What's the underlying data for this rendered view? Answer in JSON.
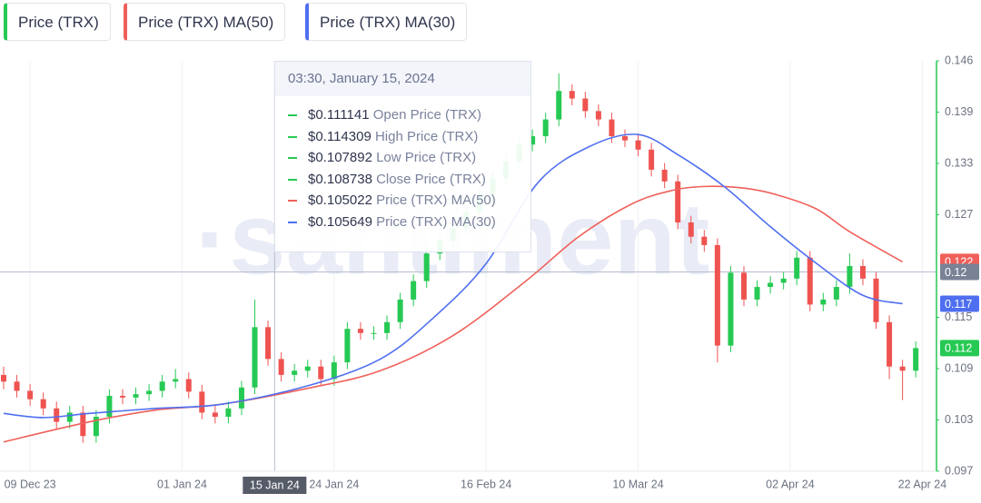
{
  "chart_data": {
    "type": "candlestick",
    "watermark": "·santiment",
    "xlim": [
      "2023-12-05",
      "2024-04-24"
    ],
    "xticks": [
      {
        "value": "2023-12-09",
        "label": "09 Dec 23"
      },
      {
        "value": "2024-01-01",
        "label": "01 Jan 24"
      },
      {
        "value": "2024-01-24",
        "label": "24 Jan 24"
      },
      {
        "value": "2024-02-16",
        "label": "16 Feb 24"
      },
      {
        "value": "2024-03-10",
        "label": "10 Mar 24"
      },
      {
        "value": "2024-04-02",
        "label": "02 Apr 24"
      },
      {
        "value": "2024-04-22",
        "label": "22 Apr 24"
      }
    ],
    "xgrid": true,
    "ylim": [
      0.097,
      0.146
    ],
    "yticks": [
      {
        "value": 0.097,
        "label": "0.097"
      },
      {
        "value": 0.103125,
        "label": "0.103"
      },
      {
        "value": 0.10925,
        "label": "0.109"
      },
      {
        "value": 0.115375,
        "label": "0.115"
      },
      {
        "value": 0.127625,
        "label": "0.127"
      },
      {
        "value": 0.13375,
        "label": "0.133"
      },
      {
        "value": 0.139875,
        "label": "0.139"
      },
      {
        "value": 0.146,
        "label": "0.146"
      }
    ],
    "series": [
      {
        "name": "Price (TRX)",
        "color": "#26c953",
        "down_color": "#ef5350",
        "x": [
          "2023-12-05",
          "2023-12-07",
          "2023-12-09",
          "2023-12-11",
          "2023-12-13",
          "2023-12-15",
          "2023-12-17",
          "2023-12-19",
          "2023-12-21",
          "2023-12-23",
          "2023-12-25",
          "2023-12-27",
          "2023-12-29",
          "2023-12-31",
          "2024-01-02",
          "2024-01-04",
          "2024-01-06",
          "2024-01-08",
          "2024-01-10",
          "2024-01-12",
          "2024-01-14",
          "2024-01-16",
          "2024-01-18",
          "2024-01-20",
          "2024-01-22",
          "2024-01-24",
          "2024-01-26",
          "2024-01-28",
          "2024-01-30",
          "2024-02-01",
          "2024-02-03",
          "2024-02-05",
          "2024-02-07",
          "2024-02-09",
          "2024-02-11",
          "2024-02-13",
          "2024-02-15",
          "2024-02-17",
          "2024-02-19",
          "2024-02-21",
          "2024-02-23",
          "2024-02-25",
          "2024-02-27",
          "2024-02-29",
          "2024-03-02",
          "2024-03-04",
          "2024-03-06",
          "2024-03-08",
          "2024-03-10",
          "2024-03-12",
          "2024-03-14",
          "2024-03-16",
          "2024-03-18",
          "2024-03-20",
          "2024-03-22",
          "2024-03-24",
          "2024-03-26",
          "2024-03-28",
          "2024-03-30",
          "2024-04-01",
          "2024-04-03",
          "2024-04-05",
          "2024-04-07",
          "2024-04-09",
          "2024-04-11",
          "2024-04-13",
          "2024-04-15",
          "2024-04-17",
          "2024-04-19",
          "2024-04-21"
        ],
        "open": [
          0.1085,
          0.1077,
          0.1066,
          0.1056,
          0.1045,
          0.1029,
          0.104,
          0.1012,
          0.1035,
          0.106,
          0.1058,
          0.1062,
          0.1066,
          0.1077,
          0.108,
          0.1065,
          0.104,
          0.1035,
          0.1045,
          0.107,
          0.1142,
          0.1104,
          0.1085,
          0.109,
          0.1095,
          0.108,
          0.11,
          0.114,
          0.1135,
          0.1135,
          0.1148,
          0.1175,
          0.1197,
          0.123,
          0.1245,
          0.126,
          0.128,
          0.13,
          0.132,
          0.134,
          0.136,
          0.137,
          0.139,
          0.1424,
          0.1415,
          0.14,
          0.139,
          0.137,
          0.1365,
          0.1354,
          0.133,
          0.1316,
          0.1267,
          0.125,
          0.124,
          0.112,
          0.1207,
          0.1175,
          0.119,
          0.1195,
          0.12,
          0.1225,
          0.1169,
          0.1175,
          0.119,
          0.1215,
          0.12,
          0.1148,
          0.1095,
          0.109
        ],
        "high": [
          0.1095,
          0.1085,
          0.1074,
          0.1064,
          0.1053,
          0.1048,
          0.1048,
          0.1043,
          0.1068,
          0.1068,
          0.107,
          0.1074,
          0.1085,
          0.1092,
          0.1088,
          0.1073,
          0.1048,
          0.1053,
          0.1078,
          0.1175,
          0.115,
          0.1112,
          0.1098,
          0.1103,
          0.1103,
          0.1108,
          0.1148,
          0.1148,
          0.1143,
          0.1156,
          0.1183,
          0.1205,
          0.1238,
          0.1253,
          0.1268,
          0.1288,
          0.1308,
          0.1328,
          0.1348,
          0.1368,
          0.1378,
          0.1398,
          0.1445,
          0.1432,
          0.1423,
          0.1408,
          0.1398,
          0.1378,
          0.1373,
          0.1362,
          0.1338,
          0.1324,
          0.1275,
          0.1258,
          0.1248,
          0.1215,
          0.1215,
          0.1198,
          0.1203,
          0.1208,
          0.1233,
          0.1233,
          0.1183,
          0.1198,
          0.123,
          0.1223,
          0.1208,
          0.1156,
          0.1103,
          0.1125
        ],
        "low": [
          0.1068,
          0.1058,
          0.1048,
          0.1037,
          0.1021,
          0.1021,
          0.1004,
          0.1004,
          0.1027,
          0.105,
          0.105,
          0.1054,
          0.1058,
          0.1069,
          0.1057,
          0.1032,
          0.1027,
          0.1027,
          0.1037,
          0.1062,
          0.1096,
          0.1077,
          0.1077,
          0.1082,
          0.1072,
          0.1072,
          0.1092,
          0.1127,
          0.1127,
          0.1127,
          0.114,
          0.1167,
          0.1189,
          0.1222,
          0.1237,
          0.1252,
          0.1272,
          0.1292,
          0.1312,
          0.1332,
          0.1352,
          0.1362,
          0.1382,
          0.1407,
          0.1392,
          0.1382,
          0.1362,
          0.1357,
          0.1346,
          0.1322,
          0.1308,
          0.1259,
          0.1242,
          0.1232,
          0.11,
          0.1112,
          0.1167,
          0.1167,
          0.1182,
          0.1187,
          0.1192,
          0.1161,
          0.1161,
          0.1167,
          0.1182,
          0.1192,
          0.114,
          0.108,
          0.1055,
          0.1082
        ],
        "close": [
          0.1077,
          0.1066,
          0.1056,
          0.1045,
          0.1029,
          0.104,
          0.1012,
          0.1035,
          0.106,
          0.1058,
          0.1062,
          0.1066,
          0.1077,
          0.108,
          0.1065,
          0.104,
          0.1035,
          0.1045,
          0.107,
          0.1142,
          0.1104,
          0.1085,
          0.109,
          0.1095,
          0.108,
          0.11,
          0.114,
          0.1135,
          0.1135,
          0.1148,
          0.1175,
          0.1197,
          0.123,
          0.1245,
          0.126,
          0.128,
          0.13,
          0.132,
          0.134,
          0.136,
          0.137,
          0.139,
          0.1424,
          0.1415,
          0.14,
          0.139,
          0.137,
          0.1365,
          0.1354,
          0.133,
          0.1316,
          0.1267,
          0.125,
          0.124,
          0.112,
          0.1207,
          0.1175,
          0.119,
          0.1195,
          0.12,
          0.1225,
          0.1169,
          0.1175,
          0.119,
          0.1215,
          0.12,
          0.1148,
          0.1095,
          0.109,
          0.1117
        ],
        "close_labels": [
          null,
          null,
          null,
          null,
          null,
          null,
          null,
          null,
          null,
          null,
          null,
          null,
          null,
          null,
          null,
          null,
          null,
          null,
          null,
          null,
          null,
          null,
          null,
          null,
          null,
          null,
          null,
          null,
          null,
          null,
          null,
          null,
          null,
          null,
          null,
          null,
          null,
          null,
          null,
          null,
          null,
          null,
          null,
          null,
          null,
          null,
          null,
          null,
          null,
          null,
          null,
          null,
          null,
          null,
          null,
          null,
          null,
          null,
          null,
          null,
          null,
          null,
          null,
          null,
          null,
          null,
          null,
          null,
          null,
          "0.112"
        ]
      },
      {
        "name": "Price (TRX) MA(50)",
        "color": "#f0605a",
        "x": [
          "2023-12-05",
          "2023-12-18",
          "2023-12-28",
          "2024-01-07",
          "2024-01-20",
          "2024-01-31",
          "2024-02-11",
          "2024-02-22",
          "2024-03-01",
          "2024-03-09",
          "2024-03-15",
          "2024-03-20",
          "2024-03-26",
          "2024-03-31",
          "2024-04-06",
          "2024-04-11",
          "2024-04-19"
        ],
        "values": [
          0.1005,
          0.1029,
          0.1043,
          0.105,
          0.1069,
          0.109,
          0.1132,
          0.1197,
          0.125,
          0.1289,
          0.1305,
          0.131,
          0.1308,
          0.13,
          0.1283,
          0.1256,
          0.122
        ],
        "value_labels": [
          null,
          null,
          null,
          null,
          null,
          null,
          null,
          null,
          null,
          null,
          null,
          null,
          null,
          null,
          null,
          null,
          "0.122"
        ]
      },
      {
        "name": "Price (TRX) MA(30)",
        "color": "#4f6ff0",
        "x": [
          "2023-12-05",
          "2023-12-11",
          "2023-12-18",
          "2023-12-28",
          "2024-01-07",
          "2024-01-20",
          "2024-01-31",
          "2024-02-08",
          "2024-02-16",
          "2024-02-24",
          "2024-03-03",
          "2024-03-10",
          "2024-03-16",
          "2024-03-23",
          "2024-03-30",
          "2024-04-06",
          "2024-04-13",
          "2024-04-19"
        ],
        "values": [
          0.1039,
          0.1034,
          0.1039,
          0.1045,
          0.105,
          0.1072,
          0.1104,
          0.1153,
          0.1218,
          0.1316,
          0.1359,
          0.1372,
          0.1348,
          0.131,
          0.1262,
          0.1218,
          0.118,
          0.117
        ],
        "value_labels": [
          null,
          null,
          null,
          null,
          null,
          null,
          null,
          null,
          null,
          null,
          null,
          null,
          null,
          null,
          null,
          null,
          null,
          "0.117"
        ]
      }
    ],
    "crosshair": {
      "x": {
        "value": "2024-01-15",
        "label": "15 Jan 24"
      },
      "y": {
        "value": 0.1208,
        "label": "0.12"
      }
    },
    "tooltip": {
      "title": "03:30, January 15, 2024",
      "rows": [
        {
          "color": "#26c953",
          "value": {
            "value": 0.111141,
            "label": "$0.111141"
          },
          "name": "Open Price (TRX)"
        },
        {
          "color": "#26c953",
          "value": {
            "value": 0.114309,
            "label": "$0.114309"
          },
          "name": "High Price (TRX)"
        },
        {
          "color": "#26c953",
          "value": {
            "value": 0.107892,
            "label": "$0.107892"
          },
          "name": "Low Price (TRX)"
        },
        {
          "color": "#26c953",
          "value": {
            "value": 0.108738,
            "label": "$0.108738"
          },
          "name": "Close Price (TRX)"
        },
        {
          "color": "#f0605a",
          "value": {
            "value": 0.105022,
            "label": "$0.105022"
          },
          "name": "Price (TRX) MA(50)"
        },
        {
          "color": "#4f6ff0",
          "value": {
            "value": 0.105649,
            "label": "$0.105649"
          },
          "name": "Price (TRX) MA(30)"
        }
      ]
    }
  }
}
